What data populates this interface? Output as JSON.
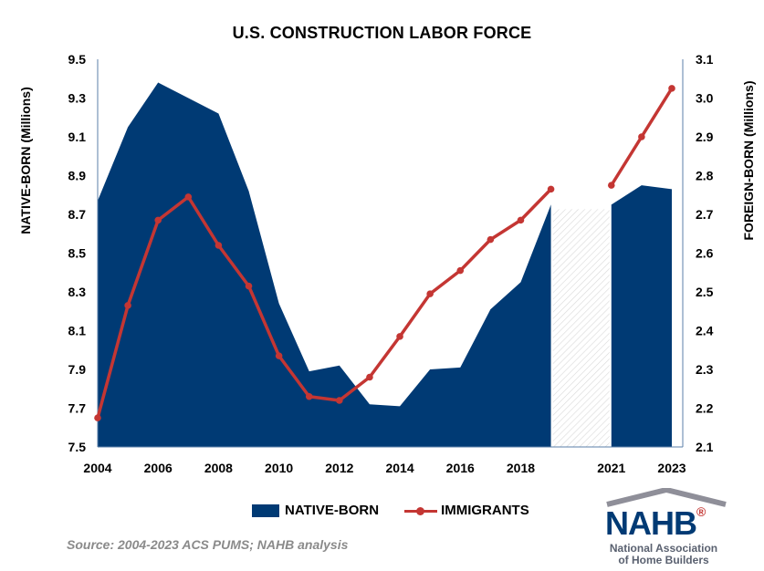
{
  "title": "U.S. CONSTRUCTION LABOR FORCE",
  "legend": {
    "area_label": "NATIVE-BORN",
    "line_label": "IMMIGRANTS"
  },
  "source": "Source: 2004-2023 ACS PUMS; NAHB analysis",
  "logo": {
    "mark": "NAHB",
    "reg": "®",
    "line1": "National Association",
    "line2": "of Home Builders"
  },
  "colors": {
    "native": "#003a74",
    "immigrant": "#c43633",
    "gap": "#d9d9d9",
    "roof": "#8f8f99"
  },
  "chart_data": {
    "type": "area",
    "title": "U.S. CONSTRUCTION LABOR FORCE",
    "ylabel": "NATIVE-BORN (Millions)",
    "y2label": "FOREIGN-BORN (Millions)",
    "ylim": [
      7.5,
      9.5
    ],
    "y2lim": [
      2.1,
      3.1
    ],
    "yticks": [
      "7.5",
      "7.7",
      "7.9",
      "8.1",
      "8.3",
      "8.5",
      "8.7",
      "8.9",
      "9.1",
      "9.3",
      "9.5"
    ],
    "y2ticks": [
      "2.1",
      "2.2",
      "2.3",
      "2.4",
      "2.5",
      "2.6",
      "2.7",
      "2.8",
      "2.9",
      "3.0",
      "3.1"
    ],
    "xlim": [
      2004,
      2023
    ],
    "xticks": [
      "2004",
      "2006",
      "2008",
      "2010",
      "2012",
      "2014",
      "2016",
      "2018",
      "2021",
      "2023"
    ],
    "missing_years": [
      2020
    ],
    "series": [
      {
        "name": "NATIVE-BORN",
        "axis": "left",
        "kind": "area",
        "x": [
          2004,
          2005,
          2006,
          2007,
          2008,
          2009,
          2010,
          2011,
          2012,
          2013,
          2014,
          2015,
          2016,
          2017,
          2018,
          2019,
          2021,
          2022,
          2023
        ],
        "values": [
          8.77,
          9.15,
          9.38,
          9.3,
          9.22,
          8.82,
          8.24,
          7.89,
          7.92,
          7.72,
          7.71,
          7.9,
          7.91,
          8.21,
          8.35,
          8.75,
          8.75,
          8.85,
          8.83
        ]
      },
      {
        "name": "IMMIGRANTS",
        "axis": "right",
        "kind": "line",
        "x": [
          2004,
          2005,
          2006,
          2007,
          2008,
          2009,
          2010,
          2011,
          2012,
          2013,
          2014,
          2015,
          2016,
          2017,
          2018,
          2019,
          2021,
          2022,
          2023
        ],
        "values": [
          2.175,
          2.465,
          2.685,
          2.745,
          2.62,
          2.515,
          2.335,
          2.23,
          2.22,
          2.28,
          2.385,
          2.495,
          2.555,
          2.635,
          2.685,
          2.765,
          2.775,
          2.9,
          3.025
        ]
      }
    ]
  }
}
